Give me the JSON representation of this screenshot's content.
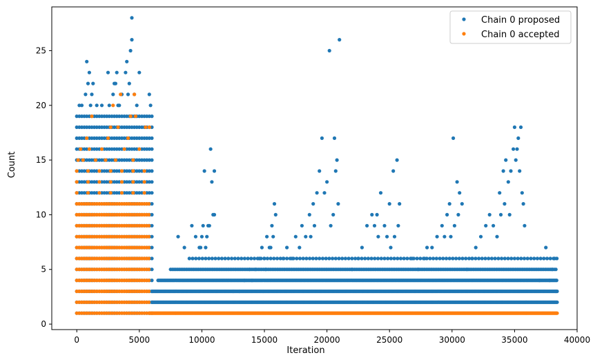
{
  "chart_data": {
    "type": "scatter",
    "title": "",
    "xlabel": "Iteration",
    "ylabel": "Count",
    "xlim": [
      -2000,
      40000
    ],
    "ylim": [
      -0.5,
      29
    ],
    "xticks": [
      0,
      5000,
      10000,
      15000,
      20000,
      25000,
      30000,
      35000,
      40000
    ],
    "yticks": [
      0,
      5,
      10,
      15,
      20,
      25
    ],
    "legend": {
      "position": "top-right"
    },
    "series": [
      {
        "name": "Chain 0 proposed",
        "color": "#1f77b4",
        "bands": [
          {
            "x": [
              0,
              6000
            ],
            "y": [
              1,
              19
            ],
            "step": 200,
            "every": 1
          },
          {
            "x": [
              6000,
              38400
            ],
            "y": [
              2,
              3
            ],
            "step": 60,
            "every": 1
          },
          {
            "x": [
              6500,
              38400
            ],
            "y": [
              4,
              4
            ],
            "step": 90,
            "every": 1
          },
          {
            "x": [
              7500,
              38400
            ],
            "y": [
              5,
              5
            ],
            "step": 140,
            "every": 1
          },
          {
            "x": [
              9000,
              38400
            ],
            "y": [
              6,
              6
            ],
            "step": 260,
            "every": 1
          }
        ],
        "points": [
          [
            200,
            20
          ],
          [
            400,
            20
          ],
          [
            700,
            21
          ],
          [
            900,
            22
          ],
          [
            1000,
            23
          ],
          [
            1200,
            21
          ],
          [
            1300,
            22
          ],
          [
            1600,
            20
          ],
          [
            2000,
            20
          ],
          [
            2500,
            23
          ],
          [
            2600,
            20
          ],
          [
            2900,
            21
          ],
          [
            3000,
            22
          ],
          [
            3100,
            22
          ],
          [
            3200,
            23
          ],
          [
            3300,
            20
          ],
          [
            3600,
            21
          ],
          [
            3900,
            23
          ],
          [
            4000,
            24
          ],
          [
            4100,
            21
          ],
          [
            4200,
            22
          ],
          [
            4300,
            25
          ],
          [
            4400,
            26
          ],
          [
            4400,
            28
          ],
          [
            4600,
            21
          ],
          [
            4800,
            20
          ],
          [
            5000,
            23
          ],
          [
            5800,
            21
          ],
          [
            5900,
            20
          ],
          [
            800,
            24
          ],
          [
            1100,
            20
          ],
          [
            3400,
            20
          ],
          [
            8100,
            8
          ],
          [
            8600,
            7
          ],
          [
            9200,
            9
          ],
          [
            9500,
            8
          ],
          [
            9800,
            7
          ],
          [
            10000,
            8
          ],
          [
            10100,
            9
          ],
          [
            10200,
            14
          ],
          [
            10400,
            8
          ],
          [
            10500,
            9
          ],
          [
            10700,
            16
          ],
          [
            10800,
            13
          ],
          [
            11000,
            14
          ],
          [
            11000,
            10
          ],
          [
            10900,
            10
          ],
          [
            10600,
            9
          ],
          [
            10300,
            7
          ],
          [
            9900,
            7
          ],
          [
            12500,
            3
          ],
          [
            13000,
            3
          ],
          [
            13400,
            4
          ],
          [
            13800,
            5
          ],
          [
            14000,
            4
          ],
          [
            14300,
            5
          ],
          [
            14600,
            6
          ],
          [
            14800,
            7
          ],
          [
            15000,
            6
          ],
          [
            15200,
            8
          ],
          [
            15400,
            7
          ],
          [
            15600,
            9
          ],
          [
            15800,
            11
          ],
          [
            15900,
            10
          ],
          [
            15700,
            8
          ],
          [
            15500,
            7
          ],
          [
            15100,
            5
          ],
          [
            16500,
            6
          ],
          [
            16800,
            7
          ],
          [
            17200,
            6
          ],
          [
            17500,
            8
          ],
          [
            17800,
            7
          ],
          [
            18000,
            9
          ],
          [
            18300,
            8
          ],
          [
            18600,
            10
          ],
          [
            18900,
            11
          ],
          [
            19200,
            12
          ],
          [
            19400,
            14
          ],
          [
            19600,
            17
          ],
          [
            19800,
            12
          ],
          [
            20000,
            13
          ],
          [
            20200,
            25
          ],
          [
            20600,
            17
          ],
          [
            20700,
            14
          ],
          [
            20800,
            15
          ],
          [
            21000,
            26
          ],
          [
            20500,
            10
          ],
          [
            20300,
            9
          ],
          [
            20900,
            11
          ],
          [
            19000,
            9
          ],
          [
            18700,
            8
          ],
          [
            22000,
            5
          ],
          [
            22500,
            6
          ],
          [
            22800,
            7
          ],
          [
            23200,
            9
          ],
          [
            23600,
            10
          ],
          [
            24000,
            10
          ],
          [
            24300,
            12
          ],
          [
            24600,
            9
          ],
          [
            24800,
            8
          ],
          [
            25000,
            11
          ],
          [
            25300,
            14
          ],
          [
            25600,
            15
          ],
          [
            25800,
            11
          ],
          [
            25700,
            9
          ],
          [
            25400,
            8
          ],
          [
            25100,
            7
          ],
          [
            24100,
            8
          ],
          [
            23800,
            9
          ],
          [
            26800,
            6
          ],
          [
            27300,
            5
          ],
          [
            27800,
            6
          ],
          [
            28000,
            7
          ],
          [
            28400,
            7
          ],
          [
            28800,
            8
          ],
          [
            29200,
            9
          ],
          [
            29600,
            10
          ],
          [
            29800,
            11
          ],
          [
            30100,
            17
          ],
          [
            30400,
            13
          ],
          [
            30600,
            12
          ],
          [
            30800,
            11
          ],
          [
            30500,
            10
          ],
          [
            30200,
            9
          ],
          [
            29900,
            8
          ],
          [
            29400,
            8
          ],
          [
            31200,
            5
          ],
          [
            31600,
            6
          ],
          [
            31900,
            7
          ],
          [
            32300,
            8
          ],
          [
            32700,
            9
          ],
          [
            33000,
            10
          ],
          [
            33300,
            9
          ],
          [
            33600,
            8
          ],
          [
            33900,
            10
          ],
          [
            34100,
            14
          ],
          [
            34300,
            15
          ],
          [
            34500,
            13
          ],
          [
            34700,
            14
          ],
          [
            34900,
            16
          ],
          [
            35000,
            18
          ],
          [
            35200,
            16
          ],
          [
            35300,
            17
          ],
          [
            35400,
            14
          ],
          [
            35500,
            18
          ],
          [
            35100,
            15
          ],
          [
            35600,
            12
          ],
          [
            35700,
            11
          ],
          [
            34200,
            11
          ],
          [
            33800,
            12
          ],
          [
            34600,
            10
          ],
          [
            35800,
            9
          ],
          [
            37000,
            4
          ],
          [
            37500,
            7
          ],
          [
            38000,
            5
          ],
          [
            38200,
            6
          ],
          [
            38300,
            3
          ],
          [
            37800,
            4
          ]
        ]
      },
      {
        "name": "Chain 0 accepted",
        "color": "#ff7f0e",
        "bands": [
          {
            "x": [
              0,
              5800
            ],
            "y": [
              1,
              11
            ],
            "step": 180,
            "every": 1
          },
          {
            "x": [
              0,
              5600
            ],
            "y": [
              12,
              14
            ],
            "step": 900,
            "every": 1
          },
          {
            "x": [
              5800,
              38400
            ],
            "y": [
              1,
              1
            ],
            "step": 50,
            "every": 1
          }
        ],
        "points": [
          [
            100,
            15
          ],
          [
            300,
            16
          ],
          [
            500,
            15
          ],
          [
            800,
            17
          ],
          [
            1000,
            16
          ],
          [
            1200,
            19
          ],
          [
            1500,
            15
          ],
          [
            2000,
            16
          ],
          [
            2300,
            15
          ],
          [
            2700,
            18
          ],
          [
            2900,
            20
          ],
          [
            3100,
            15
          ],
          [
            3300,
            18
          ],
          [
            3500,
            21
          ],
          [
            3800,
            16
          ],
          [
            4100,
            17
          ],
          [
            4300,
            19
          ],
          [
            4500,
            15
          ],
          [
            4600,
            21
          ],
          [
            4700,
            19
          ],
          [
            5000,
            16
          ],
          [
            5500,
            18
          ],
          [
            5800,
            18
          ],
          [
            2500,
            17
          ]
        ]
      }
    ]
  }
}
